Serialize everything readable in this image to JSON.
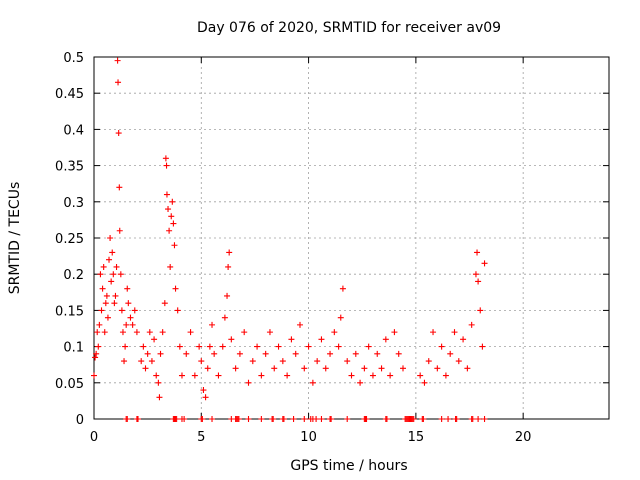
{
  "chart_data": {
    "type": "scatter",
    "title": "Day 076 of 2020, SRMTID for receiver av09",
    "xlabel": "GPS time / hours",
    "ylabel": "SRMTID / TECUs",
    "xlim": [
      0,
      24
    ],
    "ylim": [
      0,
      0.5
    ],
    "x_ticks": [
      0,
      5,
      10,
      15,
      20
    ],
    "y_ticks": [
      0,
      0.05,
      0.1,
      0.15,
      0.2,
      0.25,
      0.3,
      0.35,
      0.4,
      0.45,
      0.5
    ],
    "x_tick_labels": [
      "0",
      "5",
      "10",
      "15",
      "20"
    ],
    "y_tick_labels": [
      "0",
      "0.05",
      "0.1",
      "0.15",
      "0.2",
      "0.25",
      "0.3",
      "0.35",
      "0.4",
      "0.45",
      "0.5"
    ],
    "grid": true,
    "marker": "+",
    "series": [
      {
        "name": "SRMTID",
        "color": "#ff0000",
        "points": [
          [
            0.0,
            0.06
          ],
          [
            0.05,
            0.085
          ],
          [
            0.1,
            0.09
          ],
          [
            0.15,
            0.12
          ],
          [
            0.2,
            0.1
          ],
          [
            0.25,
            0.13
          ],
          [
            0.3,
            0.2
          ],
          [
            0.35,
            0.15
          ],
          [
            0.4,
            0.18
          ],
          [
            0.45,
            0.21
          ],
          [
            0.5,
            0.12
          ],
          [
            0.55,
            0.16
          ],
          [
            0.6,
            0.17
          ],
          [
            0.65,
            0.14
          ],
          [
            0.7,
            0.22
          ],
          [
            0.75,
            0.25
          ],
          [
            0.8,
            0.19
          ],
          [
            0.85,
            0.23
          ],
          [
            0.9,
            0.2
          ],
          [
            0.95,
            0.16
          ],
          [
            1.0,
            0.17
          ],
          [
            1.05,
            0.21
          ],
          [
            1.1,
            0.495
          ],
          [
            1.12,
            0.465
          ],
          [
            1.15,
            0.395
          ],
          [
            1.18,
            0.32
          ],
          [
            1.2,
            0.26
          ],
          [
            1.25,
            0.2
          ],
          [
            1.3,
            0.15
          ],
          [
            1.35,
            0.12
          ],
          [
            1.4,
            0.08
          ],
          [
            1.45,
            0.1
          ],
          [
            1.5,
            0.13
          ],
          [
            1.55,
            0.18
          ],
          [
            1.6,
            0.16
          ],
          [
            1.7,
            0.14
          ],
          [
            1.8,
            0.13
          ],
          [
            1.9,
            0.15
          ],
          [
            2.0,
            0.12
          ],
          [
            2.2,
            0.08
          ],
          [
            2.3,
            0.1
          ],
          [
            2.4,
            0.07
          ],
          [
            2.5,
            0.09
          ],
          [
            2.6,
            0.12
          ],
          [
            2.7,
            0.08
          ],
          [
            2.8,
            0.11
          ],
          [
            2.9,
            0.06
          ],
          [
            3.0,
            0.05
          ],
          [
            3.05,
            0.03
          ],
          [
            3.1,
            0.09
          ],
          [
            3.2,
            0.12
          ],
          [
            3.3,
            0.16
          ],
          [
            3.35,
            0.36
          ],
          [
            3.38,
            0.35
          ],
          [
            3.4,
            0.31
          ],
          [
            3.45,
            0.29
          ],
          [
            3.5,
            0.26
          ],
          [
            3.55,
            0.21
          ],
          [
            3.6,
            0.28
          ],
          [
            3.65,
            0.3
          ],
          [
            3.7,
            0.27
          ],
          [
            3.75,
            0.24
          ],
          [
            3.8,
            0.18
          ],
          [
            3.9,
            0.15
          ],
          [
            4.0,
            0.1
          ],
          [
            4.1,
            0.06
          ],
          [
            4.3,
            0.09
          ],
          [
            4.5,
            0.12
          ],
          [
            4.7,
            0.06
          ],
          [
            4.9,
            0.1
          ],
          [
            5.0,
            0.08
          ],
          [
            5.1,
            0.04
          ],
          [
            5.2,
            0.03
          ],
          [
            5.3,
            0.07
          ],
          [
            5.4,
            0.1
          ],
          [
            5.5,
            0.13
          ],
          [
            5.6,
            0.09
          ],
          [
            5.8,
            0.06
          ],
          [
            6.0,
            0.1
          ],
          [
            6.1,
            0.14
          ],
          [
            6.2,
            0.17
          ],
          [
            6.25,
            0.21
          ],
          [
            6.3,
            0.23
          ],
          [
            6.4,
            0.11
          ],
          [
            6.6,
            0.07
          ],
          [
            6.8,
            0.09
          ],
          [
            7.0,
            0.12
          ],
          [
            7.2,
            0.05
          ],
          [
            7.4,
            0.08
          ],
          [
            7.6,
            0.1
          ],
          [
            7.8,
            0.06
          ],
          [
            8.0,
            0.09
          ],
          [
            8.2,
            0.12
          ],
          [
            8.4,
            0.07
          ],
          [
            8.6,
            0.1
          ],
          [
            8.8,
            0.08
          ],
          [
            9.0,
            0.06
          ],
          [
            9.2,
            0.11
          ],
          [
            9.4,
            0.09
          ],
          [
            9.6,
            0.13
          ],
          [
            9.8,
            0.07
          ],
          [
            10.0,
            0.1
          ],
          [
            10.2,
            0.05
          ],
          [
            10.4,
            0.08
          ],
          [
            10.6,
            0.11
          ],
          [
            10.8,
            0.07
          ],
          [
            11.0,
            0.09
          ],
          [
            11.2,
            0.12
          ],
          [
            11.4,
            0.1
          ],
          [
            11.5,
            0.14
          ],
          [
            11.6,
            0.18
          ],
          [
            11.8,
            0.08
          ],
          [
            12.0,
            0.06
          ],
          [
            12.2,
            0.09
          ],
          [
            12.4,
            0.05
          ],
          [
            12.6,
            0.07
          ],
          [
            12.8,
            0.1
          ],
          [
            13.0,
            0.06
          ],
          [
            13.2,
            0.09
          ],
          [
            13.4,
            0.07
          ],
          [
            13.6,
            0.11
          ],
          [
            13.8,
            0.06
          ],
          [
            14.0,
            0.12
          ],
          [
            14.2,
            0.09
          ],
          [
            14.4,
            0.07
          ],
          [
            15.2,
            0.06
          ],
          [
            15.4,
            0.05
          ],
          [
            15.6,
            0.08
          ],
          [
            15.8,
            0.12
          ],
          [
            16.0,
            0.07
          ],
          [
            16.2,
            0.1
          ],
          [
            16.4,
            0.06
          ],
          [
            16.6,
            0.09
          ],
          [
            16.8,
            0.12
          ],
          [
            17.0,
            0.08
          ],
          [
            17.2,
            0.11
          ],
          [
            17.4,
            0.07
          ],
          [
            17.6,
            0.13
          ],
          [
            17.8,
            0.2
          ],
          [
            17.85,
            0.23
          ],
          [
            17.9,
            0.19
          ],
          [
            18.0,
            0.15
          ],
          [
            18.1,
            0.1
          ],
          [
            18.2,
            0.215
          ]
        ]
      }
    ],
    "baseline_markers_at_zero": [
      1.5,
      1.55,
      2.0,
      2.05,
      3.7,
      3.75,
      3.8,
      3.85,
      4.1,
      4.2,
      5.0,
      5.05,
      5.5,
      6.4,
      6.6,
      6.65,
      6.7,
      6.75,
      7.2,
      7.8,
      8.3,
      8.35,
      8.8,
      8.85,
      9.3,
      9.8,
      10.1,
      10.2,
      10.35,
      10.6,
      11.0,
      11.05,
      11.8,
      12.6,
      12.65,
      12.7,
      13.6,
      13.65,
      14.5,
      14.55,
      14.6,
      14.65,
      14.7,
      14.75,
      14.8,
      14.85,
      14.9,
      15.3,
      15.35,
      16.2,
      16.5,
      16.85,
      16.9,
      17.6,
      17.65,
      17.9,
      18.2
    ]
  }
}
